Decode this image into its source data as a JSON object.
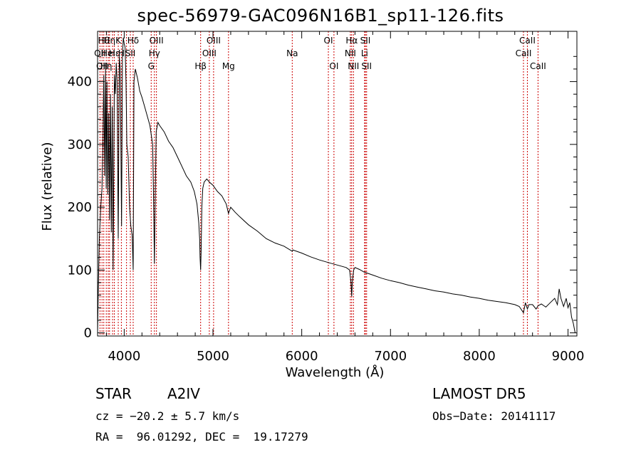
{
  "chart_data": {
    "type": "line",
    "title": "spec-56979-GAC096N16B1_sp11-126.fits",
    "xlabel": "Wavelength (Å)",
    "ylabel": "Flux (relative)",
    "xlim": [
      3700,
      9100
    ],
    "ylim": [
      -5,
      480
    ],
    "x_ticks": [
      4000,
      5000,
      6000,
      7000,
      8000,
      9000
    ],
    "y_ticks": [
      0,
      100,
      200,
      300,
      400
    ],
    "grid": false,
    "line_color": "#000000",
    "marker_color": "#cc0000",
    "series": [
      {
        "x": [
          3700,
          3710,
          3720,
          3735,
          3750,
          3760,
          3770,
          3780,
          3790,
          3797,
          3805,
          3815,
          3825,
          3835,
          3845,
          3855,
          3865,
          3875,
          3889,
          3900,
          3910,
          3920,
          3933,
          3945,
          3955,
          3970,
          3980,
          3990,
          4000,
          4010,
          4020,
          4030,
          4045,
          4060,
          4075,
          4090,
          4101,
          4110,
          4125,
          4150,
          4175,
          4200,
          4230,
          4260,
          4290,
          4320,
          4330,
          4340,
          4350,
          4360,
          4380,
          4400,
          4450,
          4500,
          4550,
          4600,
          4650,
          4700,
          4750,
          4790,
          4820,
          4840,
          4850,
          4855,
          4861,
          4867,
          4875,
          4885,
          4900,
          4930,
          4960,
          5000,
          5050,
          5100,
          5150,
          5175,
          5200,
          5250,
          5300,
          5400,
          5500,
          5600,
          5700,
          5800,
          5893,
          5900,
          6000,
          6100,
          6200,
          6300,
          6400,
          6500,
          6540,
          6555,
          6563,
          6570,
          6585,
          6600,
          6650,
          6700,
          6800,
          6900,
          7000,
          7100,
          7200,
          7300,
          7400,
          7500,
          7600,
          7700,
          7800,
          7900,
          8000,
          8100,
          8200,
          8300,
          8400,
          8450,
          8498,
          8520,
          8542,
          8560,
          8600,
          8640,
          8662,
          8700,
          8750,
          8800,
          8850,
          8880,
          8900,
          8920,
          8950,
          8980,
          9000,
          9020,
          9040,
          9060,
          9080
        ],
        "y": [
          0,
          80,
          150,
          200,
          230,
          300,
          410,
          250,
          420,
          230,
          400,
          220,
          350,
          180,
          380,
          160,
          360,
          100,
          410,
          380,
          430,
          400,
          150,
          440,
          420,
          170,
          440,
          470,
          460,
          455,
          400,
          300,
          280,
          200,
          170,
          155,
          100,
          400,
          420,
          405,
          385,
          375,
          360,
          345,
          330,
          300,
          220,
          110,
          220,
          320,
          335,
          330,
          320,
          305,
          295,
          280,
          265,
          250,
          240,
          225,
          205,
          175,
          150,
          120,
          100,
          130,
          200,
          230,
          240,
          245,
          240,
          235,
          225,
          218,
          205,
          190,
          200,
          192,
          185,
          172,
          162,
          150,
          143,
          138,
          130,
          132,
          127,
          121,
          116,
          112,
          108,
          104,
          100,
          80,
          58,
          82,
          100,
          104,
          101,
          97,
          92,
          87,
          83,
          80,
          76,
          73,
          70,
          67,
          65,
          62,
          60,
          57,
          55,
          52,
          50,
          48,
          45,
          42,
          32,
          48,
          38,
          45,
          45,
          38,
          43,
          46,
          41,
          48,
          55,
          45,
          70,
          55,
          42,
          55,
          40,
          48,
          25,
          15,
          0
        ]
      }
    ],
    "line_markers": [
      {
        "x": 3727,
        "label": "OII",
        "row": 1,
        "anchor": "middle"
      },
      {
        "x": 3750,
        "label": "OII",
        "row": 2,
        "anchor": "middle"
      },
      {
        "x": 3770,
        "label": "Hθ",
        "row": 0,
        "anchor": "middle"
      },
      {
        "x": 3798,
        "label": "Hη",
        "row": 2,
        "anchor": "middle"
      },
      {
        "x": 3820,
        "label": "HeI",
        "row": 1,
        "anchor": "middle"
      },
      {
        "x": 3835,
        "label": "Hη",
        "row": 0,
        "anchor": "middle"
      },
      {
        "x": 3869,
        "label": "",
        "row": 0,
        "anchor": "middle"
      },
      {
        "x": 3889,
        "label": "Hε",
        "row": 1,
        "anchor": "middle"
      },
      {
        "x": 3933,
        "label": "K",
        "row": 0,
        "anchor": "middle"
      },
      {
        "x": 3968,
        "label": "H",
        "row": 1,
        "anchor": "middle"
      },
      {
        "x": 4026,
        "label": "",
        "row": 0,
        "anchor": "middle"
      },
      {
        "x": 4069,
        "label": "SII",
        "row": 1,
        "anchor": "middle"
      },
      {
        "x": 4101,
        "label": "Hδ",
        "row": 0,
        "anchor": "middle"
      },
      {
        "x": 4304,
        "label": "G",
        "row": 2,
        "anchor": "middle"
      },
      {
        "x": 4340,
        "label": "Hγ",
        "row": 1,
        "anchor": "middle"
      },
      {
        "x": 4363,
        "label": "OIII",
        "row": 0,
        "anchor": "middle"
      },
      {
        "x": 4861,
        "label": "Hβ",
        "row": 2,
        "anchor": "middle"
      },
      {
        "x": 4959,
        "label": "OIII",
        "row": 1,
        "anchor": "middle"
      },
      {
        "x": 5007,
        "label": "OIII",
        "row": 0,
        "anchor": "middle"
      },
      {
        "x": 5175,
        "label": "Mg",
        "row": 2,
        "anchor": "middle"
      },
      {
        "x": 5893,
        "label": "Na",
        "row": 1,
        "anchor": "middle"
      },
      {
        "x": 6300,
        "label": "OI",
        "row": 0,
        "anchor": "middle"
      },
      {
        "x": 6363,
        "label": "OI",
        "row": 2,
        "anchor": "middle"
      },
      {
        "x": 6548,
        "label": "NII",
        "row": 1,
        "anchor": "middle"
      },
      {
        "x": 6563,
        "label": "Hα",
        "row": 0,
        "anchor": "middle"
      },
      {
        "x": 6583,
        "label": "NII",
        "row": 2,
        "anchor": "middle"
      },
      {
        "x": 6708,
        "label": "Li",
        "row": 1,
        "anchor": "middle"
      },
      {
        "x": 6717,
        "label": "SII",
        "row": 0,
        "anchor": "middle"
      },
      {
        "x": 6731,
        "label": "SII",
        "row": 2,
        "anchor": "middle"
      },
      {
        "x": 8498,
        "label": "CaII",
        "row": 1,
        "anchor": "middle"
      },
      {
        "x": 8542,
        "label": "CaII",
        "row": 0,
        "anchor": "middle"
      },
      {
        "x": 8662,
        "label": "CaII",
        "row": 2,
        "anchor": "middle"
      }
    ]
  },
  "info": {
    "object_type": "STAR",
    "subclass": "A2IV",
    "survey": "LAMOST DR5",
    "redshift": "cz = −20.2 ± 5.7 km/s",
    "obs_date": "Obs−Date: 20141117",
    "coords": "RA =  96.01292, DEC =  19.17279"
  }
}
